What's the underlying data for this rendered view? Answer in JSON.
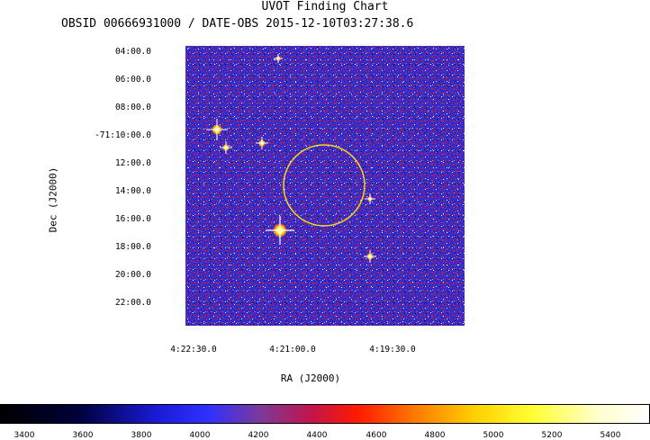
{
  "chart_data": {
    "type": "heatmap",
    "title": "UVOT Finding Chart",
    "subtitle": "OBSID 00666931000 / DATE-OBS 2015-12-10T03:27:38.6",
    "xlabel": "RA (J2000)",
    "ylabel": "Dec (J2000)",
    "x_ticks": [
      "4:22:30.0",
      "4:21:00.0",
      "4:19:30.0"
    ],
    "y_ticks": [
      "04:00.0",
      "06:00.0",
      "08:00.0",
      "-71:10:00.0",
      "12:00.0",
      "14:00.0",
      "16:00.0",
      "18:00.0",
      "20:00.0",
      "22:00.0"
    ],
    "colorbar": {
      "ticks": [
        "3400",
        "3600",
        "3800",
        "4000",
        "4200",
        "4400",
        "4600",
        "4800",
        "5000",
        "5200",
        "5400"
      ],
      "range": [
        3330,
        5530
      ],
      "colormap": [
        "#000000",
        "#00003a",
        "#1a1ad6",
        "#3030ff",
        "#7a3a9a",
        "#c3144a",
        "#ff1a00",
        "#ff7a00",
        "#ffd000",
        "#ffff33",
        "#ffffcc",
        "#ffffff"
      ]
    },
    "region": {
      "shape": "circle",
      "color": "#ffd21a"
    },
    "bright_sources": [
      {
        "label": "",
        "value": 5530
      },
      {
        "label": "",
        "value": 5530
      },
      {
        "label": "",
        "value": 5530
      },
      {
        "label": "",
        "value": 5530
      },
      {
        "label": "",
        "value": 5530
      },
      {
        "label": "",
        "value": 5530
      },
      {
        "label": "",
        "value": 5530
      }
    ]
  }
}
